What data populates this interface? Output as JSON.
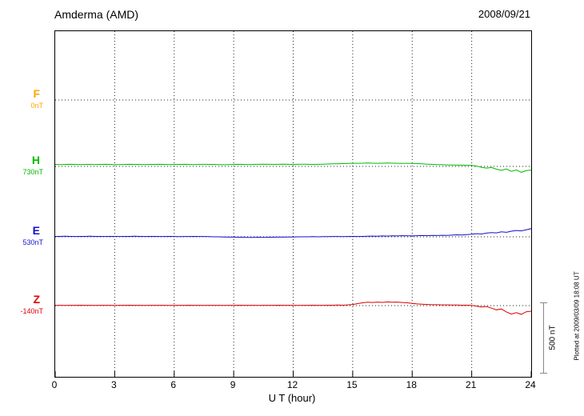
{
  "header": {
    "title": "Amderma (AMD)",
    "date": "2008/09/21"
  },
  "footer": {
    "plotted_at": "Plotted at 2009/03/09 18:08 UT"
  },
  "scale_bar": {
    "label": "500 nT"
  },
  "chart_data": {
    "type": "line",
    "title": "Amderma (AMD) magnetogram",
    "date": "2008/09/21",
    "xlabel": "U T (hour)",
    "x_range": [
      0,
      24
    ],
    "x_ticks": [
      0,
      3,
      6,
      9,
      12,
      15,
      18,
      21,
      24
    ],
    "grid": "dotted vertical at 3h intervals, dotted horizontal at each series baseline",
    "scale_bar_nT": 500,
    "series": [
      {
        "name": "F",
        "baseline_label": "0nT",
        "baseline_nT": 0,
        "color": "#FFA500",
        "x_step_hours": 0.25,
        "values": []
      },
      {
        "name": "H",
        "baseline_label": "730nT",
        "baseline_nT": 730,
        "color": "#00BB00",
        "x_step_hours": 0.25,
        "values": [
          14,
          13,
          14,
          15,
          14,
          13,
          14,
          14,
          13,
          14,
          15,
          14,
          13,
          13,
          14,
          15,
          14,
          14,
          13,
          14,
          14,
          15,
          14,
          13,
          14,
          14,
          15,
          14,
          13,
          14,
          15,
          14,
          14,
          13,
          12,
          13,
          14,
          15,
          14,
          13,
          14,
          15,
          16,
          15,
          14,
          15,
          16,
          15,
          14,
          15,
          16,
          15,
          14,
          15,
          16,
          17,
          18,
          19,
          20,
          21,
          22,
          22,
          23,
          24,
          23,
          22,
          23,
          24,
          23,
          22,
          21,
          22,
          21,
          20,
          18,
          16,
          14,
          13,
          12,
          11,
          10,
          9,
          9,
          8,
          8,
          2,
          -6,
          -12,
          -8,
          -20,
          -28,
          -18,
          -35,
          -25,
          -42,
          -30,
          -26
        ]
      },
      {
        "name": "E",
        "baseline_label": "530nT",
        "baseline_nT": 530,
        "color": "#1111CC",
        "x_step_hours": 0.25,
        "values": [
          3,
          3,
          4,
          3,
          2,
          3,
          3,
          4,
          3,
          3,
          2,
          3,
          3,
          2,
          3,
          3,
          4,
          3,
          2,
          3,
          3,
          2,
          2,
          3,
          2,
          1,
          2,
          2,
          3,
          2,
          2,
          1,
          0,
          0,
          -1,
          -2,
          -2,
          -3,
          -3,
          -4,
          -4,
          -3,
          -4,
          -3,
          -3,
          -2,
          -2,
          -1,
          -1,
          0,
          0,
          0,
          1,
          0,
          1,
          1,
          2,
          2,
          1,
          2,
          3,
          2,
          3,
          4,
          5,
          4,
          6,
          5,
          7,
          6,
          8,
          7,
          6,
          8,
          9,
          8,
          10,
          9,
          11,
          10,
          12,
          14,
          13,
          16,
          18,
          22,
          20,
          26,
          30,
          28,
          35,
          32,
          40,
          45,
          42,
          50,
          58
        ]
      },
      {
        "name": "Z",
        "baseline_label": "-140nT",
        "baseline_nT": -140,
        "color": "#DD0000",
        "x_step_hours": 0.25,
        "values": [
          2,
          2,
          1,
          2,
          2,
          3,
          2,
          2,
          1,
          2,
          2,
          2,
          1,
          2,
          2,
          3,
          2,
          2,
          1,
          2,
          2,
          2,
          2,
          1,
          2,
          2,
          2,
          3,
          2,
          2,
          1,
          2,
          2,
          2,
          1,
          2,
          2,
          3,
          2,
          2,
          2,
          1,
          2,
          2,
          2,
          3,
          2,
          2,
          2,
          1,
          2,
          2,
          3,
          2,
          2,
          3,
          3,
          4,
          3,
          5,
          8,
          14,
          20,
          24,
          22,
          25,
          23,
          26,
          24,
          25,
          22,
          20,
          16,
          12,
          10,
          8,
          6,
          6,
          5,
          5,
          4,
          4,
          3,
          3,
          2,
          -4,
          -10,
          -6,
          -18,
          -30,
          -24,
          -45,
          -60,
          -50,
          -62,
          -44,
          -40
        ]
      }
    ]
  }
}
